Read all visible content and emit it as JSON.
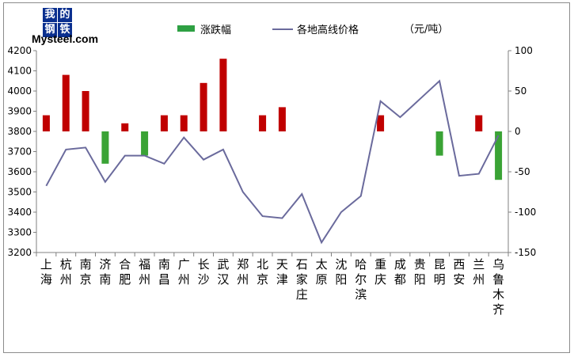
{
  "logo": {
    "chars": [
      "我",
      "的",
      "钢",
      "铁"
    ],
    "text": "Mysteel.com"
  },
  "legend": {
    "bar_label": "涨跌幅",
    "line_label": "各地高线价格",
    "unit": "（元/吨）"
  },
  "colors": {
    "bar_up": "#c00000",
    "bar_down": "#3aa335",
    "line": "#6a6a9c"
  },
  "chart_data": {
    "type": "bar+line",
    "categories": [
      "上海",
      "杭州",
      "南京",
      "济南",
      "合肥",
      "福州",
      "南昌",
      "广州",
      "长沙",
      "武汉",
      "郑州",
      "北京",
      "天津",
      "石家庄",
      "太原",
      "沈阳",
      "哈尔滨",
      "重庆",
      "成都",
      "贵阳",
      "昆明",
      "西安",
      "兰州",
      "乌鲁木齐"
    ],
    "series": [
      {
        "name": "涨跌幅",
        "type": "bar",
        "axis": "right",
        "values": [
          20,
          70,
          50,
          -40,
          10,
          -30,
          20,
          20,
          60,
          90,
          0,
          20,
          30,
          0,
          0,
          0,
          0,
          20,
          0,
          0,
          -30,
          0,
          20,
          -60
        ]
      },
      {
        "name": "各地高线价格",
        "type": "line",
        "axis": "left",
        "values": [
          3530,
          3710,
          3720,
          3550,
          3680,
          3680,
          3640,
          3770,
          3660,
          3710,
          3500,
          3380,
          3370,
          3490,
          3250,
          3400,
          3480,
          3950,
          3870,
          3960,
          4050,
          3580,
          3590,
          3780
        ]
      }
    ],
    "y_left": {
      "min": 3200,
      "max": 4200,
      "ticks": [
        "3200",
        "3300",
        "3400",
        "3500",
        "3600",
        "3700",
        "3800",
        "3900",
        "4000",
        "4100",
        "4200"
      ]
    },
    "y_right": {
      "min": -150,
      "max": 100,
      "ticks": [
        "-150",
        "-100",
        "-50",
        "0",
        "50",
        "100"
      ]
    },
    "grid": false
  }
}
